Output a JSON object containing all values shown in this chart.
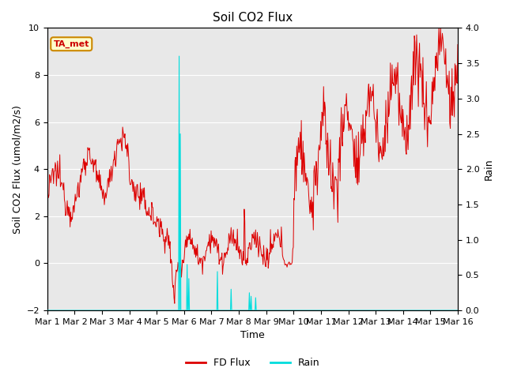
{
  "title": "Soil CO2 Flux",
  "xlabel": "Time",
  "ylabel_left": "Soil CO2 Flux (umol/m2/s)",
  "ylabel_right": "Rain",
  "ylim_left": [
    -2,
    10
  ],
  "ylim_right": [
    0.0,
    4.0
  ],
  "bg_color": "#dedede",
  "plot_bg": "#e8e8e8",
  "fd_color": "#dd0000",
  "rain_color": "#00dddd",
  "annotation_text": "TA_met",
  "annotation_bg": "#ffffcc",
  "annotation_border": "#cc8800",
  "x_tick_labels": [
    "Mar 1",
    "Mar 2",
    "Mar 3",
    "Mar 4",
    "Mar 5",
    "Mar 6",
    "Mar 7",
    "Mar 8",
    "Mar 9",
    "Mar 10",
    "Mar 11",
    "Mar 12",
    "Mar 13",
    "Mar 14",
    "Mar 15",
    "Mar 16"
  ],
  "n_days": 15,
  "dt_per_day": 48,
  "figsize": [
    6.4,
    4.8
  ],
  "dpi": 100
}
